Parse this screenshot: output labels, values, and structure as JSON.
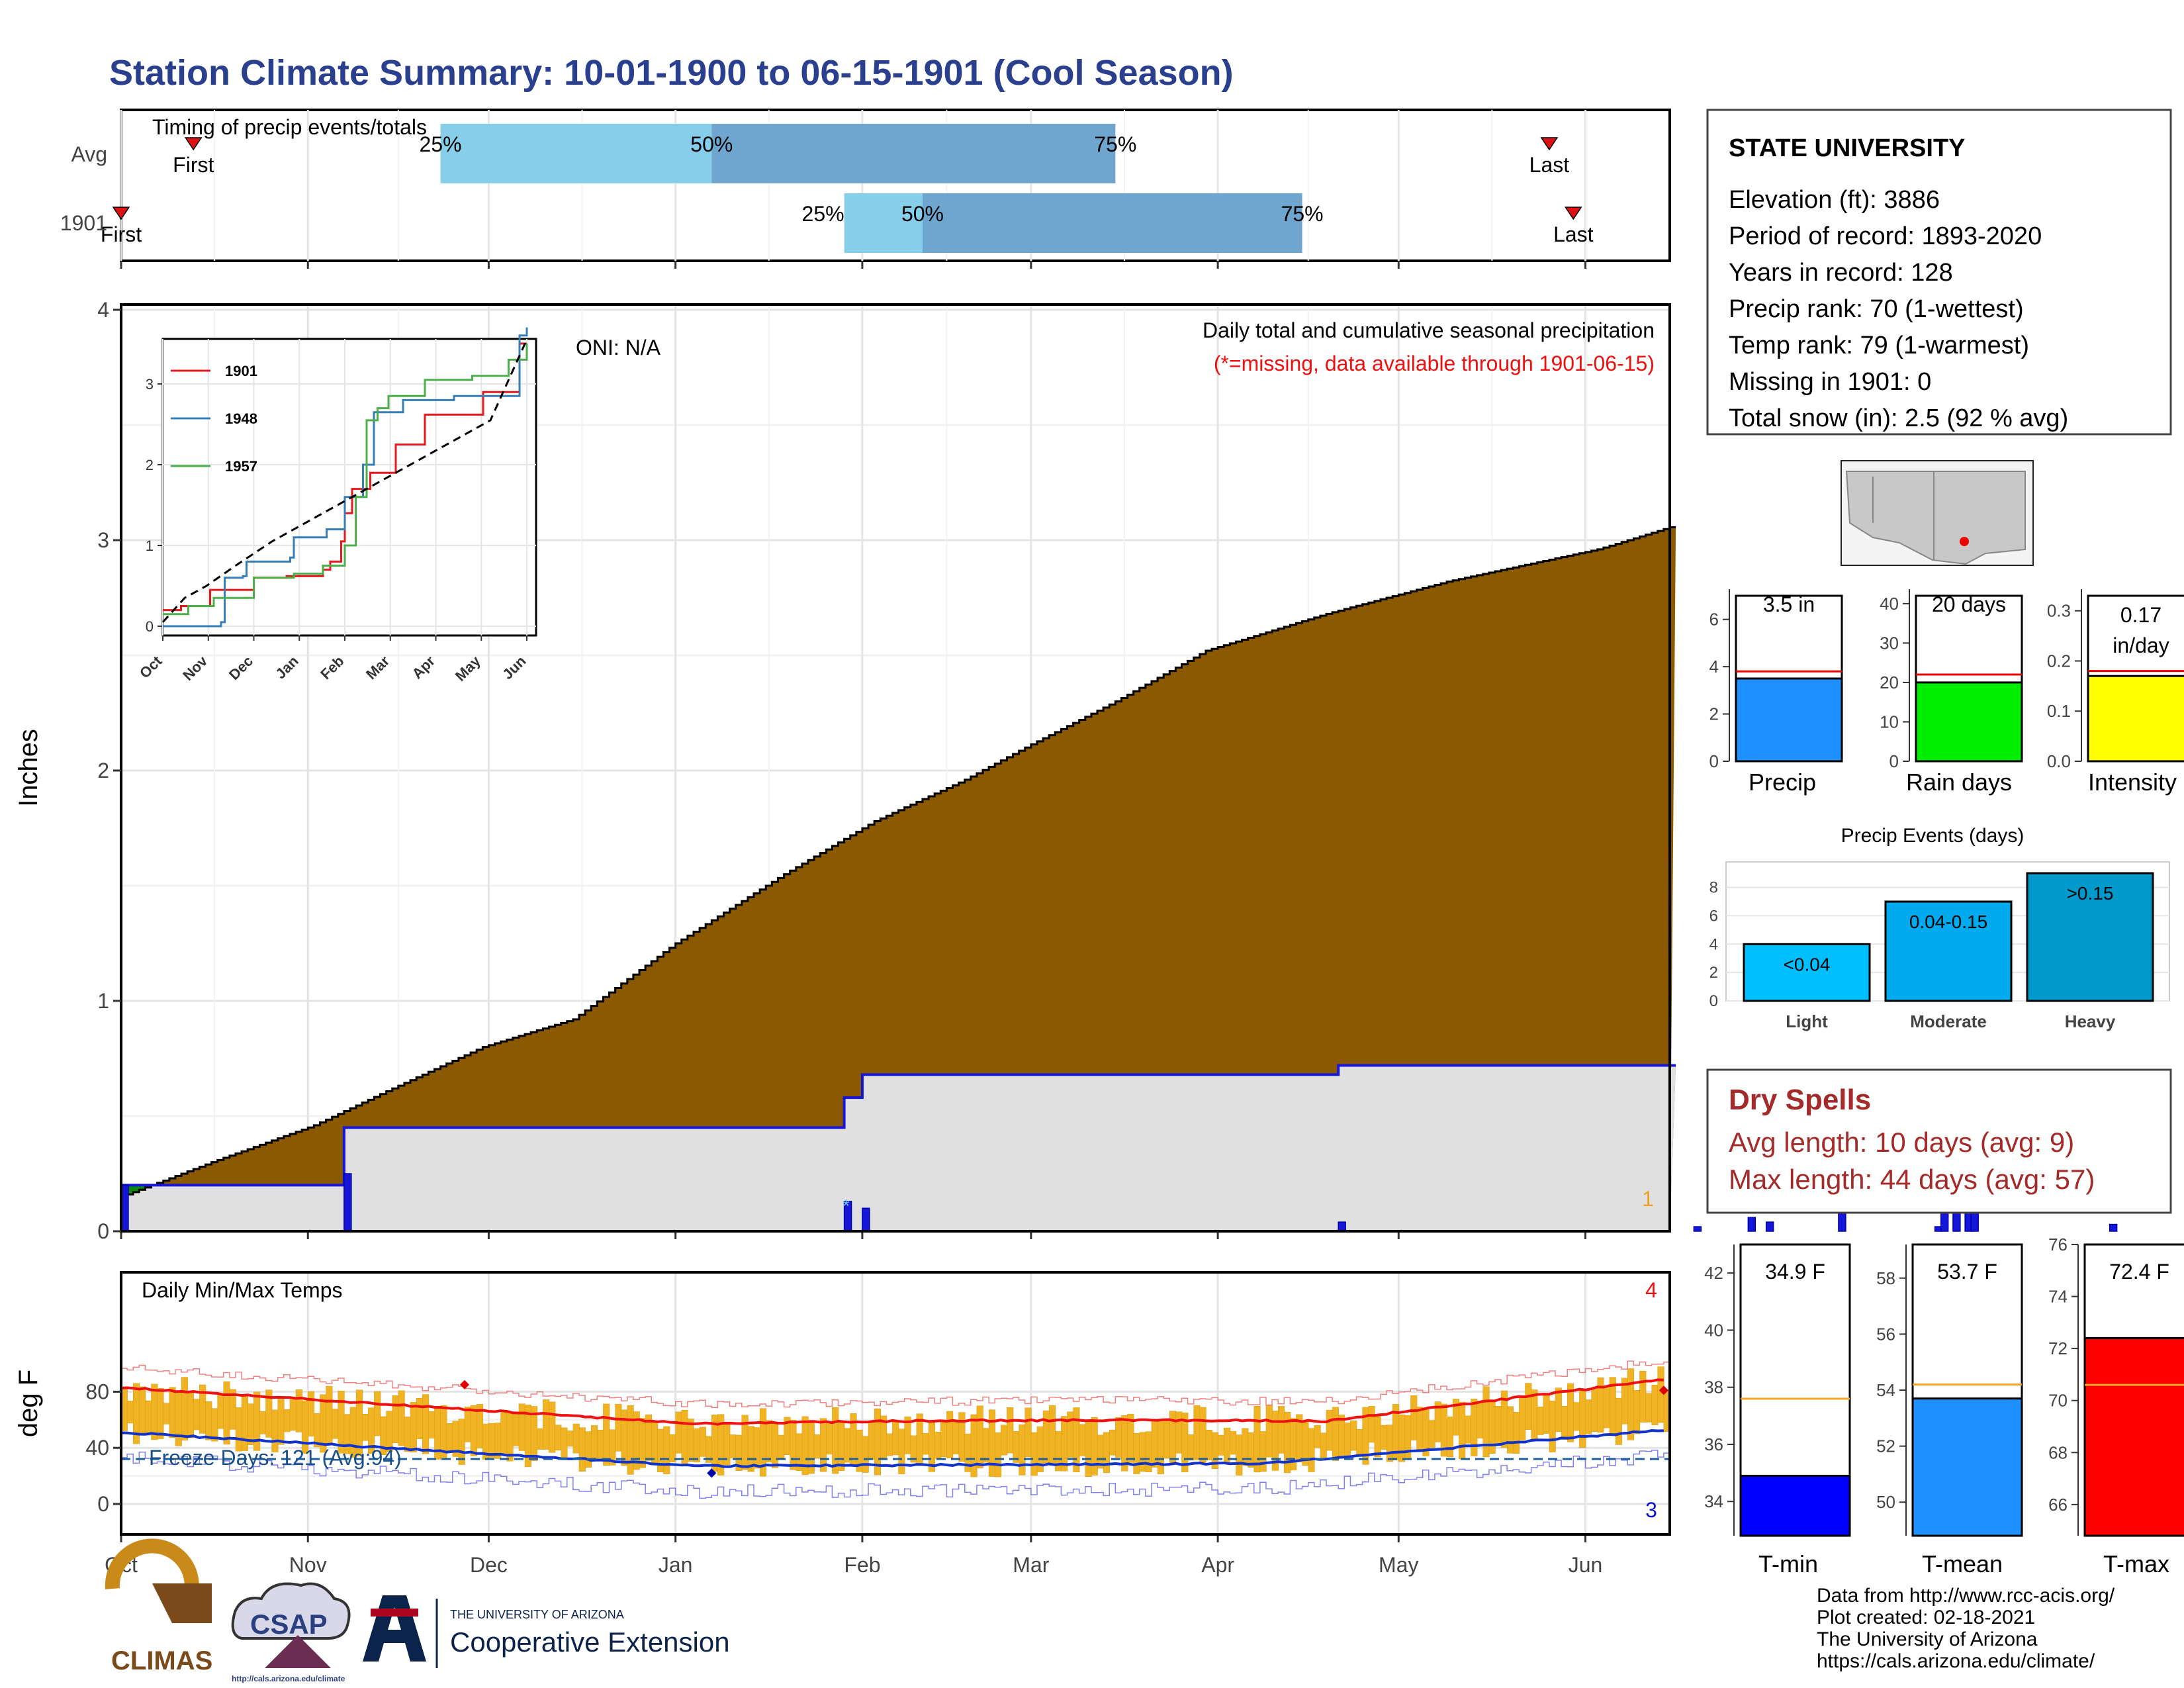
{
  "title": "Station Climate Summary: 10-01-1900 to 06-15-1901 (Cool Season)",
  "colors": {
    "title": "#2b3f8f",
    "cumulative_fill": "#8b5a00",
    "current_fill": "#e0e0e0",
    "line_blue": "#1616d8",
    "deficit_green": "#0a8a0a",
    "bar_light": "#87ceeb",
    "bar_dark": "#6ea6cf",
    "temp_bar": "#f0b323",
    "red": "#ee1111",
    "blue": "#1133cc",
    "freeze_line": "#2060a0"
  },
  "timing": {
    "title": "Timing of precip events/totals",
    "rows": [
      {
        "label": "Avg",
        "first_label": "First",
        "last_label": "Last",
        "first": "1900-10-13",
        "last": "1901-05-26",
        "p25": "1900-11-23",
        "p50": "1901-01-07",
        "p75": "1901-03-15",
        "p25_label": "25%",
        "p50_label": "50%",
        "p75_label": "75%"
      },
      {
        "label": "1901",
        "first_label": "First",
        "last_label": "Last",
        "first": "1900-10-01",
        "last": "1901-05-30",
        "p25": "1901-01-29",
        "p50": "1901-02-11",
        "p75": "1901-04-15",
        "p25_label": "25%",
        "p50_label": "50%",
        "p75_label": "75%"
      }
    ]
  },
  "main_chart": {
    "ylabel": "Inches",
    "y_ticks": [
      "0",
      "1",
      "2",
      "3",
      "4"
    ],
    "oni": "ONI: N/A",
    "note1": "Daily total and cumulative seasonal precipitation",
    "note2": "(*=missing, data available through 1901-06-15)",
    "count_label": "1"
  },
  "inset": {
    "months": [
      "Oct",
      "Nov",
      "Dec",
      "Jan",
      "Feb",
      "Mar",
      "Apr",
      "May",
      "Jun"
    ],
    "y_ticks": [
      "0",
      "1",
      "2",
      "3"
    ],
    "legend": [
      {
        "name": "1901",
        "color": "#e41a1c"
      },
      {
        "name": "1948",
        "color": "#377eb8"
      },
      {
        "name": "1957",
        "color": "#4daf4a"
      }
    ]
  },
  "temp_chart": {
    "ylabel": "deg F",
    "title": "Daily Min/Max Temps",
    "y_ticks": [
      "0",
      "40",
      "80"
    ],
    "freeze_label": "Freeze Days: 121 (Avg:94)",
    "count_hi": "4",
    "count_lo": "3"
  },
  "x_months": [
    "Oct",
    "Nov",
    "Dec",
    "Jan",
    "Feb",
    "Mar",
    "Apr",
    "May",
    "Jun"
  ],
  "station": {
    "name": "STATE UNIVERSITY",
    "lines": [
      "Elevation (ft): 3886",
      "Period of record: 1893-2020",
      "Years in record: 128",
      "Precip rank: 70 (1-wettest)",
      "Temp rank: 79 (1-warmest)",
      "Missing in 1901: 0",
      "Total snow (in): 2.5 (92 % avg)"
    ]
  },
  "summary_bars": [
    {
      "label": "Precip",
      "value_text": "3.5 in",
      "value": 3.5,
      "avg": 3.8,
      "ymax": 7,
      "ticks": [
        "0",
        "2",
        "4",
        "6"
      ],
      "tick_vals": [
        0,
        2,
        4,
        6
      ],
      "color": "#1e90ff"
    },
    {
      "label": "Rain days",
      "value_text": "20 days",
      "value": 20,
      "avg": 22,
      "ymax": 42,
      "ticks": [
        "0",
        "10",
        "20",
        "30",
        "40"
      ],
      "tick_vals": [
        0,
        10,
        20,
        30,
        40
      ],
      "color": "#00ee00"
    },
    {
      "label": "Intensity",
      "value_text": "0.17 in/day",
      "value_line1": "0.17",
      "value_line2": "in/day",
      "value": 0.17,
      "avg": 0.18,
      "ymax": 0.33,
      "ticks": [
        "0.0",
        "0.1",
        "0.2",
        "0.3"
      ],
      "tick_vals": [
        0,
        0.1,
        0.2,
        0.3
      ],
      "color": "#ffff00"
    }
  ],
  "precip_events": {
    "title": "Precip Events (days)",
    "y_ticks": [
      "0",
      "2",
      "4",
      "6",
      "8"
    ],
    "bars": [
      {
        "label": "Light",
        "range": "<0.04",
        "value": 4,
        "color": "#00bfff"
      },
      {
        "label": "Moderate",
        "range": "0.04-0.15",
        "value": 7,
        "color": "#00aaee"
      },
      {
        "label": "Heavy",
        "range": ">0.15",
        "value": 9,
        "color": "#0099cc"
      }
    ]
  },
  "dry_spells": {
    "title": "Dry Spells",
    "avg_line": "Avg length: 10 days (avg: 9)",
    "max_line": "Max length: 44 days (avg: 57)"
  },
  "temp_bars": [
    {
      "label": "T-min",
      "value_text": "34.9 F",
      "value": 34.9,
      "avg": 37.6,
      "ymin": 32.8,
      "ymax": 43,
      "ticks": [
        "34",
        "36",
        "38",
        "40",
        "42"
      ],
      "tick_vals": [
        34,
        36,
        38,
        40,
        42
      ],
      "color": "#0000ff"
    },
    {
      "label": "T-mean",
      "value_text": "53.7 F",
      "value": 53.7,
      "avg": 54.2,
      "ymin": 48.8,
      "ymax": 59.2,
      "ticks": [
        "50",
        "52",
        "54",
        "56",
        "58"
      ],
      "tick_vals": [
        50,
        52,
        54,
        56,
        58
      ],
      "color": "#1e90ff"
    },
    {
      "label": "T-max",
      "value_text": "72.4 F",
      "value": 72.4,
      "avg": 70.6,
      "ymin": 64.8,
      "ymax": 76,
      "ticks": [
        "66",
        "68",
        "70",
        "72",
        "74",
        "76"
      ],
      "tick_vals": [
        66,
        68,
        70,
        72,
        74,
        76
      ],
      "color": "#ff0000"
    }
  ],
  "footer": {
    "lines": [
      "Data from http://www.rcc-acis.org/",
      "Plot created: 02-18-2021",
      "The University of Arizona",
      "https://cals.arizona.edu/climate/"
    ]
  },
  "logos": {
    "climas": "CLIMAS",
    "csap": "CSAP",
    "csap_url": "http://cals.arizona.edu/climate",
    "ua_small": "THE UNIVERSITY OF ARIZONA",
    "ua_big": "Cooperative Extension"
  }
}
